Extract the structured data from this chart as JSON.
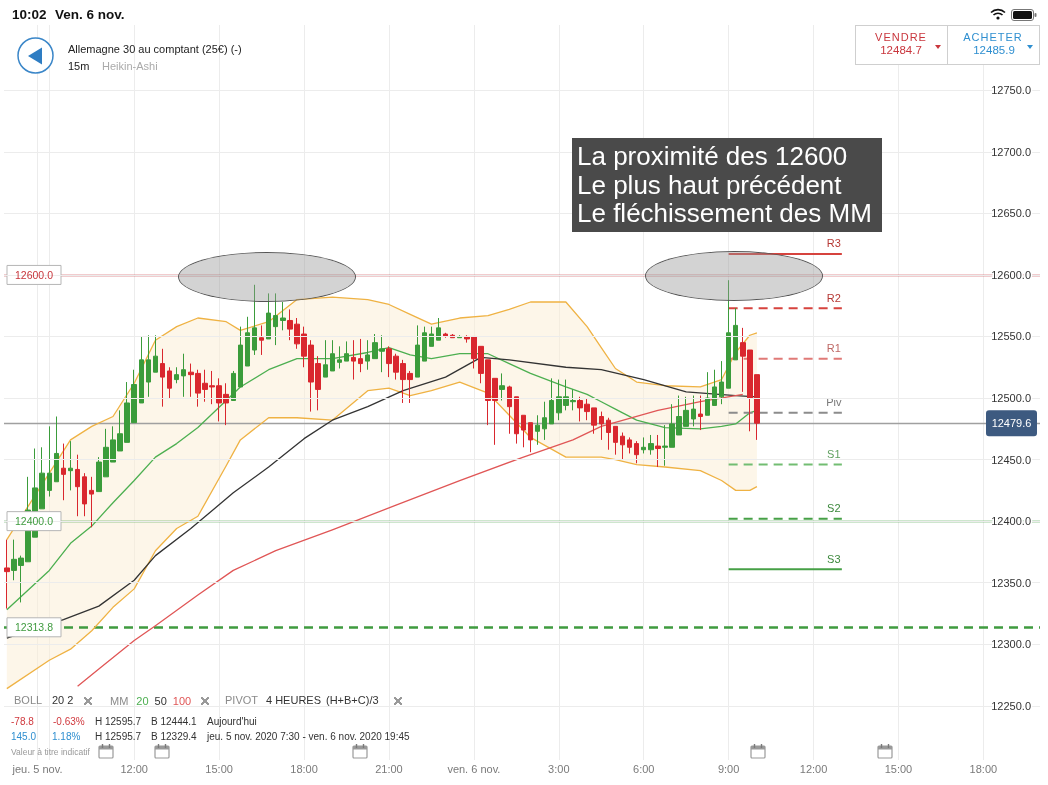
{
  "chart_data": {
    "type": "candlestick",
    "title": "Allemagne 30 au comptant (25€) (-)",
    "subtitle": "15m",
    "legend_title": "MM",
    "x": [
      "2020-11-05T07:30",
      "2020-11-05T07:45",
      "2020-11-05T08:00",
      "2020-11-05T08:15",
      "2020-11-05T08:30",
      "2020-11-05T08:45",
      "2020-11-05T09:00",
      "2020-11-05T09:15",
      "2020-11-05T09:30",
      "2020-11-05T09:45",
      "2020-11-05T10:00",
      "2020-11-05T10:15",
      "2020-11-05T10:30",
      "2020-11-05T10:45",
      "2020-11-05T11:00",
      "2020-11-05T11:15",
      "2020-11-05T11:30",
      "2020-11-05T11:45",
      "2020-11-05T12:00",
      "2020-11-05T12:15",
      "2020-11-05T12:30",
      "2020-11-05T12:45",
      "2020-11-05T13:00",
      "2020-11-05T13:15",
      "2020-11-05T13:30",
      "2020-11-05T13:45",
      "2020-11-05T14:00",
      "2020-11-05T14:15",
      "2020-11-05T14:30",
      "2020-11-05T14:45",
      "2020-11-05T15:00",
      "2020-11-05T15:15",
      "2020-11-05T15:30",
      "2020-11-05T15:45",
      "2020-11-05T16:00",
      "2020-11-05T16:15",
      "2020-11-05T16:30",
      "2020-11-05T16:45",
      "2020-11-05T17:00",
      "2020-11-05T17:15",
      "2020-11-05T17:30",
      "2020-11-05T17:45",
      "2020-11-05T18:00",
      "2020-11-05T18:15",
      "2020-11-05T18:30",
      "2020-11-05T18:45",
      "2020-11-05T19:00",
      "2020-11-05T19:15",
      "2020-11-05T19:30",
      "2020-11-05T19:45",
      "2020-11-05T20:00",
      "2020-11-05T20:15",
      "2020-11-05T20:30",
      "2020-11-05T20:45",
      "2020-11-05T21:00",
      "2020-11-05T21:15",
      "2020-11-05T21:30",
      "2020-11-05T21:45",
      "2020-11-05T22:00",
      "2020-11-05T22:15",
      "2020-11-05T22:30",
      "2020-11-05T22:45",
      "2020-11-05T23:00",
      "2020-11-05T23:15",
      "2020-11-05T23:30",
      "2020-11-05T23:45",
      "2020-11-06T00:00",
      "2020-11-06T00:15",
      "2020-11-06T00:30",
      "2020-11-06T00:45",
      "2020-11-06T01:00",
      "2020-11-06T01:15",
      "2020-11-06T01:30",
      "2020-11-06T01:45",
      "2020-11-06T02:00",
      "2020-11-06T02:15",
      "2020-11-06T02:30",
      "2020-11-06T02:45",
      "2020-11-06T03:00",
      "2020-11-06T03:15",
      "2020-11-06T03:30",
      "2020-11-06T03:45",
      "2020-11-06T04:00",
      "2020-11-06T04:15",
      "2020-11-06T04:30",
      "2020-11-06T04:45",
      "2020-11-06T05:00",
      "2020-11-06T05:15",
      "2020-11-06T05:30",
      "2020-11-06T05:45",
      "2020-11-06T06:00",
      "2020-11-06T06:15",
      "2020-11-06T06:30",
      "2020-11-06T06:45",
      "2020-11-06T07:00",
      "2020-11-06T07:15",
      "2020-11-06T07:30",
      "2020-11-06T07:45",
      "2020-11-06T08:00",
      "2020-11-06T08:15",
      "2020-11-06T08:30",
      "2020-11-06T08:45",
      "2020-11-06T09:00",
      "2020-11-06T09:15",
      "2020-11-06T09:30",
      "2020-11-06T09:45",
      "2020-11-06T10:00"
    ],
    "ohlc": [
      [
        12362,
        12385,
        12329,
        12359
      ],
      [
        12360,
        12385,
        12352,
        12369
      ],
      [
        12364,
        12372,
        12334,
        12370
      ],
      [
        12367,
        12436,
        12367,
        12409
      ],
      [
        12387,
        12459,
        12387,
        12427
      ],
      [
        12410,
        12460,
        12410,
        12439
      ],
      [
        12425,
        12477,
        12420,
        12439
      ],
      [
        12432,
        12485,
        12432,
        12455
      ],
      [
        12443,
        12463,
        12417,
        12438
      ],
      [
        12441,
        12465,
        12425,
        12443
      ],
      [
        12442,
        12454,
        12404,
        12428
      ],
      [
        12436,
        12439,
        12404,
        12414
      ],
      [
        12425,
        12436,
        12395,
        12422
      ],
      [
        12424,
        12452,
        12424,
        12448
      ],
      [
        12436,
        12475,
        12436,
        12460
      ],
      [
        12448,
        12477,
        12448,
        12466
      ],
      [
        12457,
        12490,
        12457,
        12471
      ],
      [
        12464,
        12513,
        12464,
        12496
      ],
      [
        12480,
        12523,
        12480,
        12511
      ],
      [
        12496,
        12550,
        12496,
        12531
      ],
      [
        12513,
        12551,
        12501,
        12531
      ],
      [
        12521,
        12551,
        12521,
        12534
      ],
      [
        12528,
        12540,
        12493,
        12517
      ],
      [
        12522,
        12525,
        12500,
        12508
      ],
      [
        12515,
        12525,
        12512,
        12519
      ],
      [
        12518,
        12536,
        12501,
        12523
      ],
      [
        12521,
        12528,
        12501,
        12519
      ],
      [
        12520,
        12523,
        12493,
        12504
      ],
      [
        12512,
        12523,
        12497,
        12507
      ],
      [
        12510,
        12522,
        12495,
        12509
      ],
      [
        12510,
        12516,
        12481,
        12496
      ],
      [
        12503,
        12512,
        12478,
        12496
      ],
      [
        12498,
        12522,
        12498,
        12520
      ],
      [
        12509,
        12558,
        12509,
        12543
      ],
      [
        12526,
        12566,
        12526,
        12553
      ],
      [
        12539,
        12592,
        12535,
        12557
      ],
      [
        12549,
        12559,
        12535,
        12547
      ],
      [
        12548,
        12585,
        12548,
        12569
      ],
      [
        12558,
        12585,
        12543,
        12567
      ],
      [
        12563,
        12578,
        12555,
        12565
      ],
      [
        12563,
        12572,
        12547,
        12556
      ],
      [
        12560,
        12565,
        12540,
        12544
      ],
      [
        12552,
        12558,
        12525,
        12534
      ],
      [
        12543,
        12547,
        12489,
        12513
      ],
      [
        12528,
        12534,
        12490,
        12507
      ],
      [
        12517,
        12547,
        12517,
        12527
      ],
      [
        12522,
        12547,
        12522,
        12536
      ],
      [
        12529,
        12542,
        12524,
        12531
      ],
      [
        12530,
        12546,
        12530,
        12536
      ],
      [
        12533,
        12547,
        12515,
        12530
      ],
      [
        12532,
        12548,
        12521,
        12528
      ],
      [
        12530,
        12547,
        12523,
        12535
      ],
      [
        12532,
        12552,
        12532,
        12545
      ],
      [
        12538,
        12551,
        12521,
        12540
      ],
      [
        12540,
        12542,
        12517,
        12528
      ],
      [
        12534,
        12536,
        12515,
        12521
      ],
      [
        12528,
        12531,
        12496,
        12515
      ],
      [
        12520,
        12522,
        12496,
        12515
      ],
      [
        12517,
        12559,
        12517,
        12543
      ],
      [
        12530,
        12558,
        12530,
        12553
      ],
      [
        12542,
        12558,
        12542,
        12552
      ],
      [
        12547,
        12565,
        12547,
        12557
      ],
      [
        12552,
        12553,
        12549,
        12550
      ],
      [
        12551,
        12552,
        12549,
        12549
      ],
      [
        12549,
        12551,
        12549,
        12550
      ],
      [
        12550,
        12551,
        12545,
        12548
      ],
      [
        12550,
        12550,
        12524,
        12532
      ],
      [
        12542,
        12542,
        12512,
        12520
      ],
      [
        12531,
        12531,
        12478,
        12498
      ],
      [
        12516,
        12516,
        12462,
        12498
      ],
      [
        12507,
        12520,
        12498,
        12510
      ],
      [
        12509,
        12510,
        12471,
        12493
      ],
      [
        12501,
        12501,
        12463,
        12471
      ],
      [
        12486,
        12486,
        12460,
        12474
      ],
      [
        12480,
        12480,
        12456,
        12466
      ],
      [
        12473,
        12486,
        12462,
        12478
      ],
      [
        12475,
        12497,
        12466,
        12484
      ],
      [
        12479,
        12516,
        12479,
        12498
      ],
      [
        12488,
        12515,
        12482,
        12501
      ],
      [
        12494,
        12515,
        12490,
        12501
      ],
      [
        12497,
        12507,
        12490,
        12498
      ],
      [
        12498,
        12501,
        12481,
        12492
      ],
      [
        12495,
        12500,
        12482,
        12489
      ],
      [
        12492,
        12492,
        12471,
        12478
      ],
      [
        12485,
        12489,
        12466,
        12479
      ],
      [
        12482,
        12484,
        12458,
        12472
      ],
      [
        12477,
        12477,
        12454,
        12464
      ],
      [
        12469,
        12472,
        12450,
        12462
      ],
      [
        12466,
        12468,
        12455,
        12460
      ],
      [
        12463,
        12465,
        12447,
        12454
      ],
      [
        12458,
        12468,
        12455,
        12460
      ],
      [
        12458,
        12470,
        12454,
        12463
      ],
      [
        12461,
        12470,
        12444,
        12459
      ],
      [
        12460,
        12478,
        12445,
        12461
      ],
      [
        12460,
        12495,
        12460,
        12479
      ],
      [
        12470,
        12502,
        12470,
        12485
      ],
      [
        12477,
        12501,
        12477,
        12490
      ],
      [
        12483,
        12502,
        12477,
        12491
      ],
      [
        12487,
        12502,
        12474,
        12485
      ],
      [
        12486,
        12521,
        12486,
        12500
      ],
      [
        12494,
        12523,
        12494,
        12509
      ],
      [
        12501,
        12530,
        12495,
        12513
      ],
      [
        12508,
        12595.7,
        12508,
        12553
      ],
      [
        12531,
        12573,
        12531,
        12559
      ],
      [
        12545,
        12557,
        12505,
        12534
      ],
      [
        12539,
        12539,
        12473,
        12500
      ],
      [
        12519,
        12519,
        12466,
        12479.6
      ]
    ],
    "xlim": [
      "2020-11-05T07:24",
      "2020-11-06T20:00"
    ],
    "xticks": [
      {
        "value": "2020-11-05T08:35",
        "label": "jeu. 5 nov."
      },
      {
        "value": "2020-11-05T09:00",
        "label": null
      },
      {
        "value": "2020-11-05T12:00",
        "label": "12:00"
      },
      {
        "value": "2020-11-05T15:00",
        "label": "15:00"
      },
      {
        "value": "2020-11-05T18:00",
        "label": "18:00"
      },
      {
        "value": "2020-11-05T21:00",
        "label": "21:00"
      },
      {
        "value": "2020-11-06T00:00",
        "label": "ven. 6 nov."
      },
      {
        "value": "2020-11-06T03:00",
        "label": "3:00"
      },
      {
        "value": "2020-11-06T06:00",
        "label": "6:00"
      },
      {
        "value": "2020-11-06T09:00",
        "label": "9:00"
      },
      {
        "value": "2020-11-06T12:00",
        "label": "12:00"
      },
      {
        "value": "2020-11-06T15:00",
        "label": "15:00"
      },
      {
        "value": "2020-11-06T18:00",
        "label": "18:00"
      }
    ],
    "ylim": [
      12206,
      12803
    ],
    "yticks": [
      {
        "value": 12250,
        "label": "12250.0"
      },
      {
        "value": 12300,
        "label": "12300.0"
      },
      {
        "value": 12350,
        "label": "12350.0"
      },
      {
        "value": 12400,
        "label": "12400.0"
      },
      {
        "value": 12450,
        "label": "12450.0"
      },
      {
        "value": 12500,
        "label": "12500.0"
      },
      {
        "value": 12550,
        "label": "12550.0"
      },
      {
        "value": 12600,
        "label": "12600.0"
      },
      {
        "value": 12650,
        "label": "12650.0"
      },
      {
        "value": 12700,
        "label": "12700.0"
      },
      {
        "value": 12750,
        "label": "12750.0"
      }
    ],
    "grid": true,
    "legend": "bottom left",
    "series": [
      {
        "type": "line",
        "name": "20",
        "color": "#4caf50",
        "x": [
          "2020-11-05T07:30",
          "2020-11-05T09:00",
          "2020-11-05T09:45",
          "2020-11-05T10:30",
          "2020-11-05T11:15",
          "2020-11-05T12:00",
          "2020-11-05T12:45",
          "2020-11-05T13:30",
          "2020-11-05T14:15",
          "2020-11-05T15:15",
          "2020-11-05T15:45",
          "2020-11-05T16:45",
          "2020-11-05T17:45",
          "2020-11-05T19:00",
          "2020-11-05T20:15",
          "2020-11-05T21:00",
          "2020-11-05T21:45",
          "2020-11-05T22:30",
          "2020-11-05T23:30",
          "2020-11-06T00:30",
          "2020-11-06T01:15",
          "2020-11-06T02:00",
          "2020-11-06T03:15",
          "2020-11-06T04:00",
          "2020-11-06T04:30",
          "2020-11-06T05:00",
          "2020-11-06T05:45",
          "2020-11-06T06:45",
          "2020-11-06T08:00",
          "2020-11-06T08:45",
          "2020-11-06T09:15",
          "2020-11-06T09:45",
          "2020-11-06T10:00"
        ],
        "values": [
          12328,
          12360,
          12382,
          12396,
          12415,
          12433,
          12452,
          12463,
          12476,
          12498,
          12509,
          12523,
          12532,
          12532,
          12537,
          12541,
          12535,
          12532,
          12536,
          12536,
          12528,
          12520,
          12509,
          12503,
          12497,
          12491,
          12482,
          12476,
          12475,
          12477,
          12479,
          12488,
          12490
        ],
        "upper": [
          12385,
          12439,
          12466,
          12477,
          12485,
          12512,
          12547,
          12558,
          12565,
          12562,
          12555,
          12562,
          12580,
          12582,
          12580,
          12576,
          12568,
          12560,
          12565,
          12567,
          12572,
          12578,
          12578,
          12558,
          12541,
          12524,
          12513,
          12510,
          12509,
          12515,
          12537,
          12551,
          12553
        ],
        "lower": [
          12264,
          12287,
          12296,
          12311,
          12330,
          12345,
          12376,
          12394,
          12404,
          12445,
          12466,
          12484,
          12484,
          12482,
          12506,
          12508,
          12502,
          12506,
          12513,
          12504,
          12486,
          12468,
          12452,
          12452,
          12452,
          12450,
          12446,
          12444,
          12441,
          12433,
          12425,
          12425,
          12428
        ]
      },
      {
        "type": "line",
        "color": "#efb243",
        "x": [
          "2020-11-05T07:30",
          "2020-11-05T09:00",
          "2020-11-05T09:45",
          "2020-11-05T10:30",
          "2020-11-05T11:15",
          "2020-11-05T12:00",
          "2020-11-05T12:45",
          "2020-11-05T13:30",
          "2020-11-05T14:15",
          "2020-11-05T15:15",
          "2020-11-05T15:45",
          "2020-11-05T16:45",
          "2020-11-05T17:45",
          "2020-11-05T19:00",
          "2020-11-05T20:15",
          "2020-11-05T21:00",
          "2020-11-05T21:45",
          "2020-11-05T22:30",
          "2020-11-05T23:30",
          "2020-11-06T00:30",
          "2020-11-06T01:15",
          "2020-11-06T02:00",
          "2020-11-06T03:15",
          "2020-11-06T04:00",
          "2020-11-06T04:30",
          "2020-11-06T05:00",
          "2020-11-06T05:45",
          "2020-11-06T06:45",
          "2020-11-06T08:00",
          "2020-11-06T08:45",
          "2020-11-06T09:15",
          "2020-11-06T09:45",
          "2020-11-06T10:00"
        ],
        "values": [
          12385,
          12439,
          12466,
          12477,
          12485,
          12512,
          12547,
          12558,
          12565,
          12562,
          12555,
          12562,
          12580,
          12582,
          12580,
          12576,
          12568,
          12560,
          12565,
          12567,
          12572,
          12578,
          12578,
          12558,
          12541,
          12524,
          12513,
          12510,
          12509,
          12515,
          12537,
          12551,
          12553
        ]
      },
      {
        "type": "line",
        "color": "#efb243",
        "x": [
          "2020-11-05T07:30",
          "2020-11-05T09:00",
          "2020-11-05T09:45",
          "2020-11-05T10:30",
          "2020-11-05T11:15",
          "2020-11-05T12:00",
          "2020-11-05T12:45",
          "2020-11-05T13:30",
          "2020-11-05T14:15",
          "2020-11-05T15:15",
          "2020-11-05T15:45",
          "2020-11-05T16:45",
          "2020-11-05T17:45",
          "2020-11-05T19:00",
          "2020-11-05T20:15",
          "2020-11-05T21:00",
          "2020-11-05T21:45",
          "2020-11-05T22:30",
          "2020-11-05T23:30",
          "2020-11-06T00:30",
          "2020-11-06T01:15",
          "2020-11-06T02:00",
          "2020-11-06T03:15",
          "2020-11-06T04:00",
          "2020-11-06T04:30",
          "2020-11-06T05:00",
          "2020-11-06T05:45",
          "2020-11-06T06:45",
          "2020-11-06T08:00",
          "2020-11-06T08:45",
          "2020-11-06T09:15",
          "2020-11-06T09:45",
          "2020-11-06T10:00"
        ],
        "values": [
          12264,
          12287,
          12296,
          12311,
          12330,
          12345,
          12376,
          12394,
          12404,
          12445,
          12466,
          12484,
          12484,
          12482,
          12506,
          12508,
          12502,
          12506,
          12513,
          12504,
          12486,
          12468,
          12452,
          12452,
          12452,
          12450,
          12446,
          12444,
          12441,
          12433,
          12425,
          12425,
          12428
        ]
      },
      {
        "type": "line",
        "name": "50",
        "color": "#333333",
        "x": [
          "2020-11-05T07:30",
          "2020-11-05T09:30",
          "2020-11-05T10:45",
          "2020-11-05T12:00",
          "2020-11-05T12:45",
          "2020-11-05T14:00",
          "2020-11-05T15:30",
          "2020-11-05T16:45",
          "2020-11-05T18:00",
          "2020-11-05T19:00",
          "2020-11-05T20:15",
          "2020-11-05T21:30",
          "2020-11-05T23:00",
          "2020-11-06T00:15",
          "2020-11-06T01:15",
          "2020-11-06T03:15",
          "2020-11-06T04:30",
          "2020-11-06T06:00",
          "2020-11-06T07:30",
          "2020-11-06T09:15",
          "2020-11-06T10:00"
        ],
        "values": [
          12305,
          12320,
          12331,
          12352,
          12372,
          12394,
          12423,
          12444,
          12467,
          12482,
          12493,
          12506,
          12517,
          12533,
          12531,
          12525,
          12523,
          12515,
          12505,
          12502,
          12501
        ]
      },
      {
        "type": "line",
        "name": "100",
        "color": "#e05656",
        "x": [
          "2020-11-05T10:00",
          "2020-11-05T10:45",
          "2020-11-05T12:00",
          "2020-11-05T12:45",
          "2020-11-05T14:15",
          "2020-11-05T15:30",
          "2020-11-05T17:00",
          "2020-11-05T19:00",
          "2020-11-05T21:15",
          "2020-11-05T23:30",
          "2020-11-06T01:45",
          "2020-11-06T03:30",
          "2020-11-06T04:30",
          "2020-11-06T06:30",
          "2020-11-06T08:00",
          "2020-11-06T09:30"
        ],
        "values": [
          12266,
          12280,
          12303,
          12315,
          12340,
          12360,
          12376,
          12393,
          12413,
          12433,
          12452,
          12466,
          12477,
          12490,
          12497,
          12503
        ]
      },
      {
        "type": "line",
        "name": "R3",
        "color": "#d6433e",
        "line_style": "solid",
        "x": [
          "2020-11-06T09:00",
          "2020-11-06T13:00"
        ],
        "values": [
          12617,
          12617
        ]
      },
      {
        "type": "line",
        "name": "R2",
        "color": "#d6433e",
        "line_style": "dashed",
        "x": [
          "2020-11-06T09:00",
          "2020-11-06T13:00"
        ],
        "values": [
          12573,
          12573
        ]
      },
      {
        "type": "line",
        "name": "R1",
        "color": "#e07a77",
        "line_style": "dashed",
        "x": [
          "2020-11-06T09:00",
          "2020-11-06T13:00"
        ],
        "values": [
          12532,
          12532
        ]
      },
      {
        "type": "line",
        "name": "Piv",
        "color": "#8c8c8c",
        "line_style": "dashed",
        "x": [
          "2020-11-06T09:00",
          "2020-11-06T13:00"
        ],
        "values": [
          12488,
          12488
        ]
      },
      {
        "type": "line",
        "name": "S1",
        "color": "#72bd72",
        "line_style": "dashed",
        "x": [
          "2020-11-06T09:00",
          "2020-11-06T13:00"
        ],
        "values": [
          12446,
          12446
        ]
      },
      {
        "type": "line",
        "name": "S2",
        "color": "#46a046",
        "line_style": "dashed",
        "x": [
          "2020-11-06T09:00",
          "2020-11-06T13:00"
        ],
        "values": [
          12402,
          12402
        ]
      },
      {
        "type": "line",
        "name": "S3",
        "color": "#46a046",
        "line_style": "solid",
        "x": [
          "2020-11-06T09:00",
          "2020-11-06T13:00"
        ],
        "values": [
          12361,
          12361
        ]
      }
    ],
    "ref_lines": [
      {
        "axis": "y",
        "value": 12600,
        "label": "12600.0",
        "color": "#c8363c"
      },
      {
        "axis": "y",
        "value": 12400,
        "label": "12400.0",
        "color": "#3f9b3f"
      },
      {
        "axis": "y",
        "value": 12313.8,
        "label": "12313.8",
        "color": "#3f9b3f",
        "line_style": "dashed"
      },
      {
        "axis": "y",
        "value": 12479.6,
        "label": "12479.6",
        "color": "#a0a0a0"
      }
    ],
    "annotations": [
      "10:02",
      "Ven. 6 nov.",
      "VENDRE",
      "12484.7",
      "ACHETER",
      "12485.9",
      "La proximité des 12600\nLe plus haut précédent\nLe fléchissement des MM",
      "BOLL",
      "20 2",
      "PIVOT",
      "4 HEURES",
      "(H+B+C)/3",
      "-78.8",
      "-0.63%",
      "H 12595.7",
      "B 12444.1",
      "Aujourd'hui",
      "145.0",
      "1.18%",
      "H 12595.7",
      "B 12329.4",
      "jeu. 5 nov. 2020 7:30 - ven. 6 nov. 2020 19:45",
      "Valeur à titre indicatif",
      "Heikin-Ashi"
    ]
  }
}
